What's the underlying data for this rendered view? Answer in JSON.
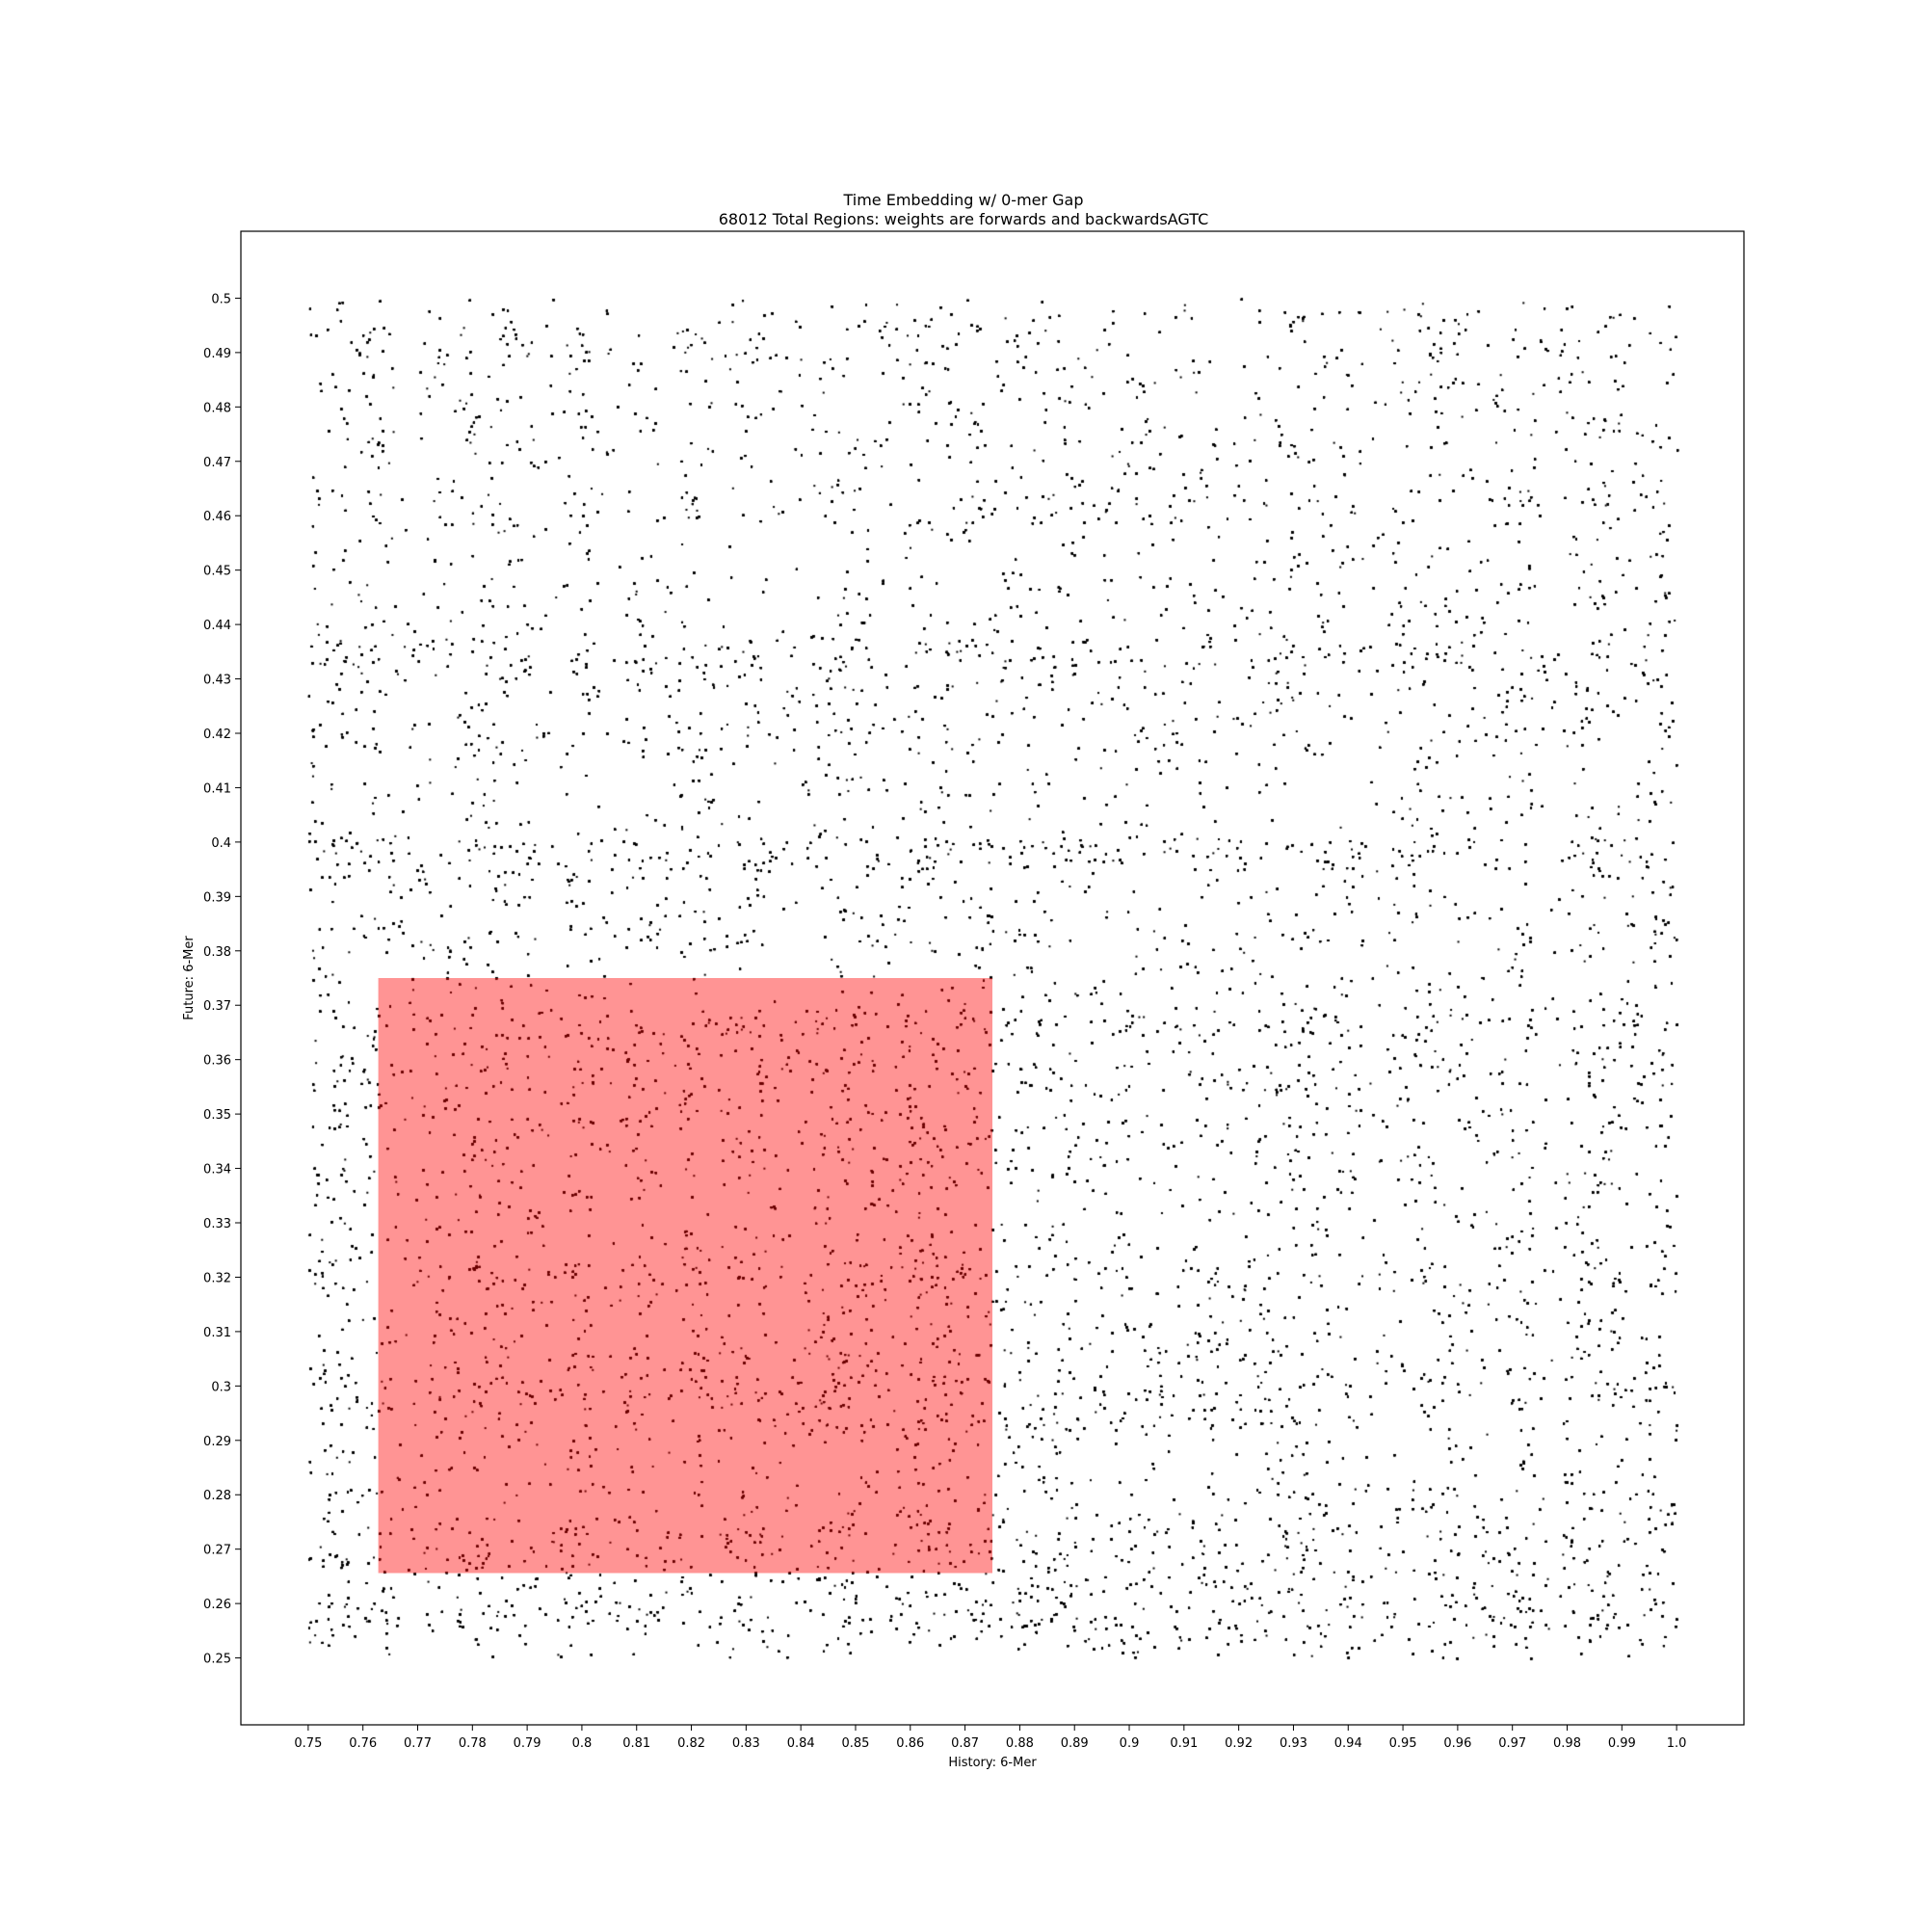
{
  "chart_data": {
    "type": "scatter",
    "title": "Time Embedding w/ 0-mer Gap",
    "subtitle": "68012 Total Regions: weights are forwards and backwardsAGTC",
    "xlabel": "History: 6-Mer",
    "ylabel": "Future: 6-Mer",
    "xlim": [
      0.7377,
      1.0123
    ],
    "ylim": [
      0.2377,
      0.5123
    ],
    "data_extent": {
      "x": [
        0.75,
        1.0
      ],
      "y": [
        0.25,
        0.5
      ]
    },
    "x_ticks": [
      "0.75",
      "0.76",
      "0.77",
      "0.78",
      "0.79",
      "0.8",
      "0.81",
      "0.82",
      "0.83",
      "0.84",
      "0.85",
      "0.86",
      "0.87",
      "0.88",
      "0.89",
      "0.9",
      "0.91",
      "0.92",
      "0.93",
      "0.94",
      "0.95",
      "0.96",
      "0.97",
      "0.98",
      "0.99",
      "1.0"
    ],
    "y_ticks": [
      "0.25",
      "0.26",
      "0.27",
      "0.28",
      "0.29",
      "0.3",
      "0.31",
      "0.32",
      "0.33",
      "0.34",
      "0.35",
      "0.36",
      "0.37",
      "0.38",
      "0.39",
      "0.4",
      "0.41",
      "0.42",
      "0.43",
      "0.44",
      "0.45",
      "0.46",
      "0.47",
      "0.48",
      "0.49",
      "0.5"
    ],
    "point_color": "#000000",
    "point_count_rendered": 60000,
    "quadrants": [
      {
        "x": [
          0.75,
          0.875
        ],
        "y": [
          0.375,
          0.4375
        ],
        "density": 0.85
      },
      {
        "x": [
          0.75,
          0.875
        ],
        "y": [
          0.4375,
          0.5
        ],
        "density": 0.45
      },
      {
        "x": [
          0.875,
          1.0
        ],
        "y": [
          0.375,
          0.4375
        ],
        "density": 0.85
      },
      {
        "x": [
          0.875,
          1.0
        ],
        "y": [
          0.4375,
          0.5
        ],
        "density": 0.55
      },
      {
        "x": [
          0.75,
          0.875
        ],
        "y": [
          0.25,
          0.375
        ],
        "density": 0.8
      },
      {
        "x": [
          0.875,
          1.0
        ],
        "y": [
          0.25,
          0.375
        ],
        "density": 0.85
      }
    ],
    "highlight_region": {
      "x": [
        0.7628,
        0.875
      ],
      "y": [
        0.2656,
        0.375
      ],
      "color": "#ff0000",
      "opacity": 0.42
    },
    "grid": false,
    "legend": "none"
  }
}
